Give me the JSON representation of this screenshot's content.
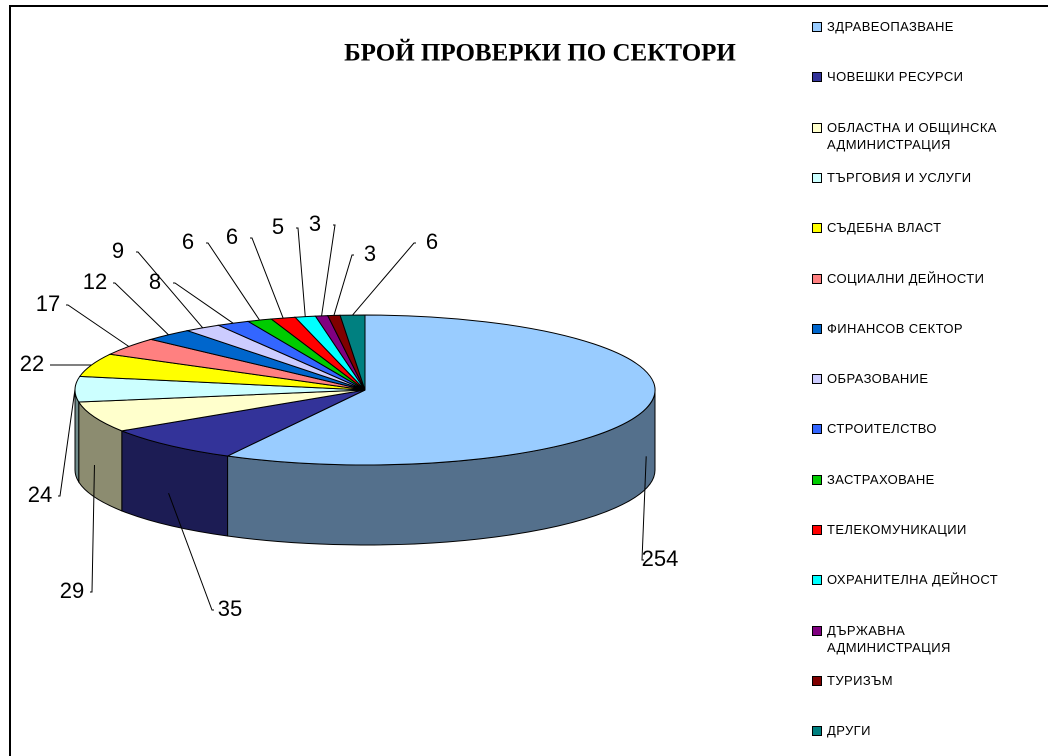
{
  "chart_data": {
    "type": "pie",
    "title": "БРОЙ ПРОВЕРКИ ПО СЕКТОРИ",
    "categories": [
      "ЗДРАВЕОПАЗВАНЕ",
      "ЧОВЕШКИ РЕСУРСИ",
      "ОБЛАСТНА И ОБЩИНСКА АДМИНИСТРАЦИЯ",
      "ТЪРГОВИЯ И УСЛУГИ",
      "СЪДЕБНА ВЛАСТ",
      "СОЦИАЛНИ ДЕЙНОСТИ",
      "ФИНАНСОВ СЕКТОР",
      "ОБРАЗОВАНИЕ",
      "СТРОИТЕЛСТВО",
      "ЗАСТРАХОВАНЕ",
      "ТЕЛЕКОМУНИКАЦИИ",
      "ОХРАНИТЕЛНА ДЕЙНОСТ",
      "ДЪРЖАВНА АДМИНИСТРАЦИЯ",
      "ТУРИЗЪМ",
      "ДРУГИ"
    ],
    "values": [
      254,
      35,
      29,
      24,
      22,
      17,
      12,
      9,
      8,
      6,
      6,
      5,
      3,
      3,
      6
    ],
    "colors": [
      "#99ccff",
      "#333399",
      "#ffffcc",
      "#ccffff",
      "#ffff00",
      "#ff8080",
      "#0066cc",
      "#ccccff",
      "#3366ff",
      "#00cc00",
      "#ff0000",
      "#00ffff",
      "#800080",
      "#800000",
      "#008080"
    ],
    "legend": "right"
  }
}
